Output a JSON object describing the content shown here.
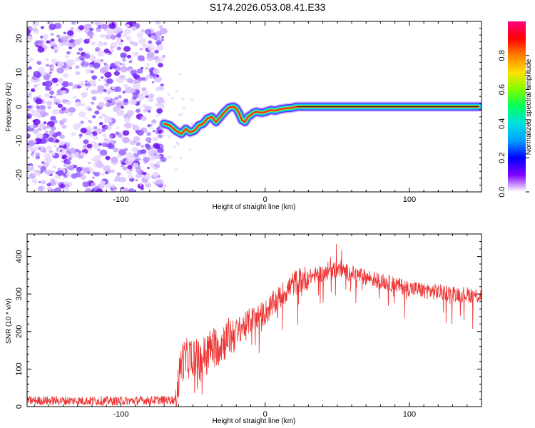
{
  "title": "S174.2026.053.08.41.E33",
  "chart_data": [
    {
      "type": "heatmap",
      "name": "spectrogram",
      "xlabel": "Height of straight line (km)",
      "ylabel": "Frequency (Hz)",
      "xlim": [
        -165,
        150
      ],
      "ylim": [
        -25,
        25
      ],
      "xticks": [
        -100,
        0,
        100
      ],
      "yticks": [
        -20,
        -10,
        0,
        10,
        20
      ],
      "noise_region_x": [
        -165,
        -70
      ],
      "signal_track": {
        "x": [
          -70,
          -66,
          -62,
          -58,
          -55,
          -52,
          -49,
          -46,
          -43,
          -40,
          -37,
          -34,
          -31,
          -28,
          -25,
          -22,
          -20,
          -18,
          -16,
          -14,
          -12,
          -10,
          -8,
          -6,
          -4,
          -2,
          0,
          2,
          4,
          7,
          10,
          14,
          18,
          22,
          30,
          40,
          60,
          90,
          120,
          148
        ],
        "y": [
          -5,
          -5.5,
          -7,
          -8,
          -6.5,
          -7.5,
          -7,
          -5.5,
          -5,
          -3.5,
          -3,
          -4.5,
          -3,
          -1.5,
          -0.3,
          0,
          -0.5,
          -2,
          -4,
          -4.5,
          -3,
          -2.5,
          -1.8,
          -1.5,
          -1.7,
          -1.8,
          -1.6,
          -1.3,
          -1,
          -1.2,
          -0.8,
          -0.5,
          -0.4,
          0,
          0,
          0,
          0,
          0,
          0,
          0
        ]
      },
      "colorbar": {
        "label": "Normalized spectral amplitude",
        "range": [
          0.0,
          1.0
        ],
        "ticks": [
          "0.0",
          "0.2",
          "0.4",
          "0.6",
          "0.8"
        ],
        "colors": [
          "#ffffff",
          "#7f00ff",
          "#0000ff",
          "#00a0ff",
          "#00e0e0",
          "#00ff60",
          "#80ff00",
          "#ffe000",
          "#ff8000",
          "#ff0000",
          "#ff0080"
        ]
      }
    },
    {
      "type": "line",
      "name": "snr",
      "xlabel": "Height of straight line (km)",
      "ylabel": "SNR (10 * v/v)",
      "xlim": [
        -165,
        150
      ],
      "ylim": [
        0,
        460
      ],
      "xticks": [
        -100,
        0,
        100
      ],
      "yticks": [
        0,
        100,
        200,
        300,
        400
      ],
      "color": "#ee3333",
      "envelope": {
        "x": [
          -165,
          -100,
          -62,
          -58,
          -50,
          -45,
          -40,
          -30,
          -20,
          -10,
          0,
          10,
          20,
          30,
          40,
          50,
          60,
          80,
          100,
          120,
          150
        ],
        "y": [
          16,
          15,
          18,
          120,
          135,
          120,
          150,
          170,
          200,
          230,
          250,
          290,
          330,
          345,
          355,
          365,
          355,
          335,
          315,
          305,
          295
        ]
      },
      "noise_amplitude": 12
    }
  ]
}
